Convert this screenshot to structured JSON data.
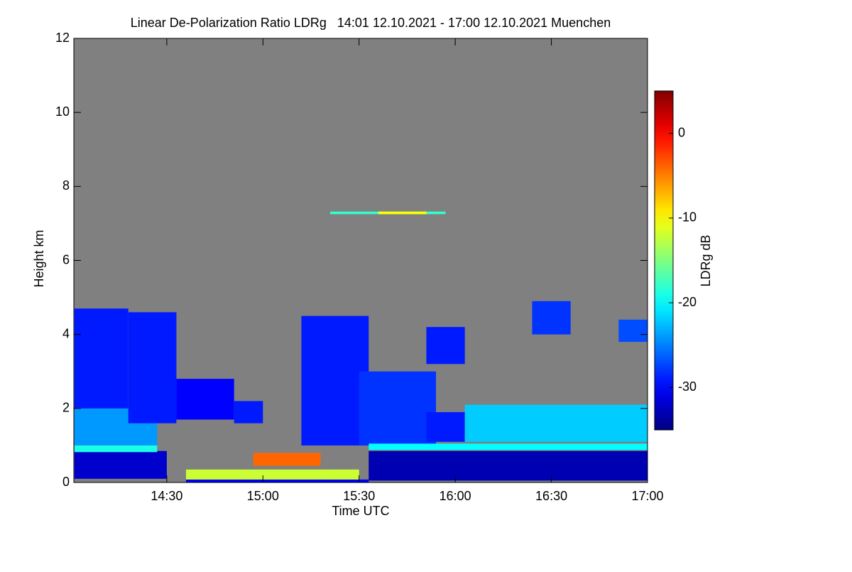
{
  "chart_data": {
    "type": "heatmap",
    "title": "Linear De-Polarization Ratio LDRg   14:01 12.10.2021 - 17:00 12.10.2021 Muenchen",
    "xlabel": "Time UTC",
    "ylabel": "Height km",
    "colorbar_label": "LDRg dB",
    "colormap": "jet",
    "background": "#808080",
    "xlim": [
      14.0167,
      17.0
    ],
    "xticks": [
      {
        "value": 14.5,
        "label": "14:30"
      },
      {
        "value": 15.0,
        "label": "15:00"
      },
      {
        "value": 15.5,
        "label": "15:30"
      },
      {
        "value": 16.0,
        "label": "16:00"
      },
      {
        "value": 16.5,
        "label": "16:30"
      },
      {
        "value": 17.0,
        "label": "17:00"
      }
    ],
    "ylim": [
      0,
      12
    ],
    "yticks": [
      0,
      2,
      4,
      6,
      8,
      10,
      12
    ],
    "clim": [
      -35,
      5
    ],
    "cticks": [
      -30,
      -20,
      -10,
      0
    ],
    "regions": [
      {
        "x": [
          14.02,
          14.5
        ],
        "y": [
          0.1,
          0.85
        ],
        "value": -32
      },
      {
        "x": [
          14.02,
          14.45
        ],
        "y": [
          1.0,
          2.0
        ],
        "value": -24
      },
      {
        "x": [
          14.02,
          14.3
        ],
        "y": [
          2.0,
          4.7
        ],
        "value": -29
      },
      {
        "x": [
          14.3,
          14.55
        ],
        "y": [
          1.6,
          4.6
        ],
        "value": -29
      },
      {
        "x": [
          14.55,
          14.85
        ],
        "y": [
          1.7,
          2.8
        ],
        "value": -30
      },
      {
        "x": [
          14.85,
          15.0
        ],
        "y": [
          1.6,
          2.2
        ],
        "value": -29
      },
      {
        "x": [
          14.02,
          14.45
        ],
        "y": [
          0.82,
          1.0
        ],
        "value": -19
      },
      {
        "x": [
          14.6,
          15.55
        ],
        "y": [
          0.0,
          0.08
        ],
        "value": -30
      },
      {
        "x": [
          14.6,
          15.5
        ],
        "y": [
          0.08,
          0.35
        ],
        "value": -12
      },
      {
        "x": [
          14.95,
          15.3
        ],
        "y": [
          0.45,
          0.8
        ],
        "value": -4
      },
      {
        "x": [
          15.2,
          15.55
        ],
        "y": [
          1.0,
          4.5
        ],
        "value": -29
      },
      {
        "x": [
          15.5,
          15.9
        ],
        "y": [
          1.0,
          3.0
        ],
        "value": -28
      },
      {
        "x": [
          15.85,
          16.05
        ],
        "y": [
          1.1,
          1.9
        ],
        "value": -29
      },
      {
        "x": [
          15.85,
          16.05
        ],
        "y": [
          3.2,
          4.2
        ],
        "value": -29
      },
      {
        "x": [
          15.55,
          17.0
        ],
        "y": [
          0.05,
          0.85
        ],
        "value": -33
      },
      {
        "x": [
          15.55,
          17.0
        ],
        "y": [
          0.88,
          1.05
        ],
        "value": -20
      },
      {
        "x": [
          16.05,
          17.0
        ],
        "y": [
          1.1,
          2.1
        ],
        "value": -22
      },
      {
        "x": [
          16.4,
          16.6
        ],
        "y": [
          4.0,
          4.9
        ],
        "value": -28
      },
      {
        "x": [
          16.85,
          17.0
        ],
        "y": [
          3.8,
          4.4
        ],
        "value": -27
      },
      {
        "x": [
          15.35,
          15.95
        ],
        "y": [
          7.25,
          7.32
        ],
        "value": -18
      },
      {
        "x": [
          15.6,
          15.85
        ],
        "y": [
          7.25,
          7.32
        ],
        "value": -10
      }
    ]
  }
}
